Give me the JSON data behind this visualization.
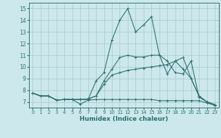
{
  "title": "",
  "xlabel": "Humidex (Indice chaleur)",
  "ylabel": "",
  "background_color": "#cde8ec",
  "grid_color": "#aacccc",
  "line_color": "#2a7070",
  "xlim": [
    -0.5,
    23.5
  ],
  "ylim": [
    6.5,
    15.5
  ],
  "xticks": [
    0,
    1,
    2,
    3,
    4,
    5,
    6,
    7,
    8,
    9,
    10,
    11,
    12,
    13,
    14,
    15,
    16,
    17,
    18,
    19,
    20,
    21,
    22,
    23
  ],
  "yticks": [
    7,
    8,
    9,
    10,
    11,
    12,
    13,
    14,
    15
  ],
  "lines": [
    [
      0,
      7.75,
      1,
      7.5,
      2,
      7.5,
      3,
      7.15,
      4,
      7.2,
      5,
      7.2,
      6,
      6.8,
      7,
      7.15,
      8,
      7.2,
      9,
      7.2,
      10,
      7.2,
      11,
      7.2,
      12,
      7.2,
      13,
      7.2,
      14,
      7.2,
      15,
      7.2,
      16,
      7.1,
      17,
      7.1,
      18,
      7.1,
      19,
      7.1,
      20,
      7.1,
      21,
      7.1,
      22,
      6.9,
      23,
      6.7
    ],
    [
      0,
      7.75,
      1,
      7.5,
      2,
      7.5,
      3,
      7.15,
      4,
      7.2,
      5,
      7.2,
      6,
      7.2,
      7,
      7.25,
      8,
      7.5,
      9,
      8.5,
      10,
      9.3,
      11,
      9.5,
      12,
      9.7,
      13,
      9.8,
      14,
      9.9,
      15,
      10.0,
      16,
      10.1,
      17,
      10.2,
      18,
      10.5,
      19,
      10.8,
      20,
      9.0,
      21,
      7.5,
      22,
      7.0,
      23,
      6.75
    ],
    [
      0,
      7.75,
      1,
      7.5,
      2,
      7.5,
      3,
      7.15,
      4,
      7.2,
      5,
      7.2,
      6,
      7.2,
      7,
      7.25,
      8,
      7.5,
      9,
      8.8,
      10,
      9.8,
      11,
      10.8,
      12,
      11.0,
      13,
      10.85,
      14,
      10.85,
      15,
      11.0,
      16,
      11.0,
      17,
      10.5,
      18,
      9.5,
      19,
      9.4,
      20,
      10.5,
      21,
      7.4,
      22,
      7.0,
      23,
      6.75
    ],
    [
      0,
      7.75,
      1,
      7.5,
      2,
      7.5,
      3,
      7.15,
      4,
      7.2,
      5,
      7.2,
      6,
      7.2,
      7,
      7.2,
      8,
      8.8,
      9,
      9.5,
      10,
      12.3,
      11,
      14.0,
      12,
      15.0,
      13,
      13.0,
      14,
      13.6,
      15,
      14.3,
      16,
      11.0,
      17,
      9.4,
      18,
      10.5,
      19,
      9.8,
      20,
      9.0,
      21,
      7.5,
      22,
      7.0,
      23,
      6.75
    ]
  ]
}
